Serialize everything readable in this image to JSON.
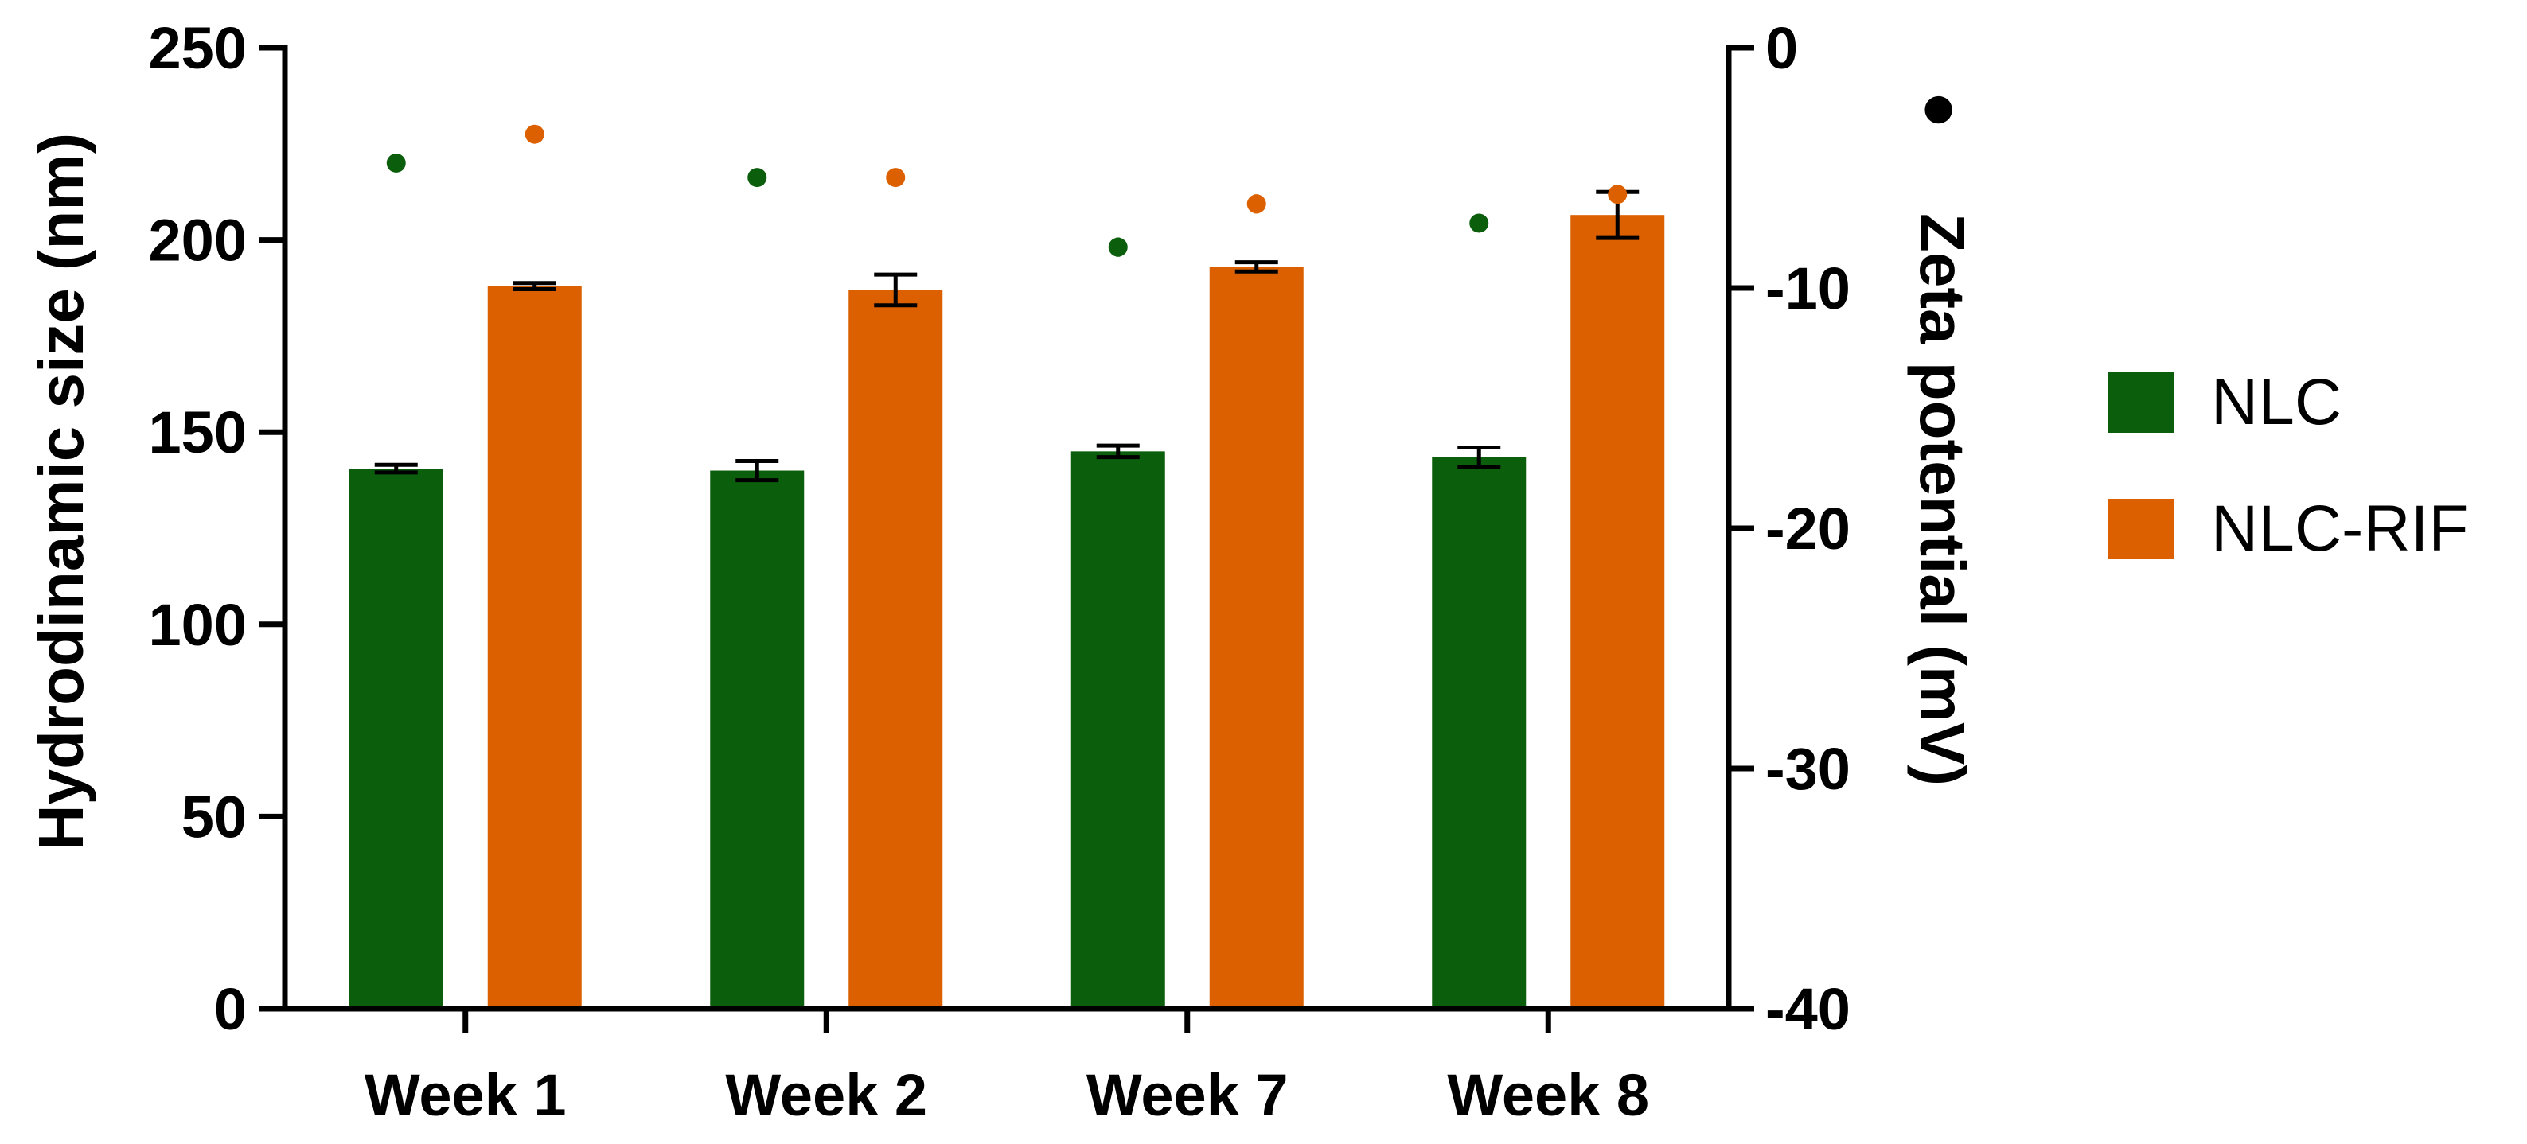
{
  "chart_data": {
    "type": "bar",
    "categories": [
      "Week 1",
      "Week 2",
      "Week 7",
      "Week 8"
    ],
    "series": [
      {
        "name": "NLC",
        "color": "#0b5e0b",
        "size_values": [
          140.5,
          140.0,
          145.0,
          143.5
        ],
        "size_errors": [
          1.0,
          2.5,
          1.5,
          2.5
        ],
        "zeta_values": [
          -4.8,
          -5.4,
          -8.3,
          -7.3
        ],
        "zeta_errors": [
          0.2,
          0.2,
          0.4,
          0.2
        ]
      },
      {
        "name": "NLC-RIF",
        "color": "#dc6000",
        "size_values": [
          188.0,
          187.0,
          193.0,
          206.5
        ],
        "size_errors": [
          0.8,
          4.0,
          1.2,
          6.0
        ],
        "zeta_values": [
          -3.6,
          -5.4,
          -6.5,
          -6.1
        ],
        "zeta_errors": [
          0.25,
          0.2,
          0.4,
          0.2
        ]
      }
    ],
    "y_left": {
      "label": "Hydrodinamic size (nm)",
      "ylim": [
        0,
        250
      ],
      "ticks": [
        "0",
        "50",
        "100",
        "150",
        "200",
        "250"
      ]
    },
    "y_right": {
      "label": "Zeta potential (mV)",
      "marker": "●",
      "ylim": [
        -40,
        0
      ],
      "ticks": [
        "-40",
        "-30",
        "-20",
        "-10",
        "0"
      ]
    },
    "legend": {
      "position": "right",
      "items": [
        "NLC",
        "NLC-RIF"
      ]
    },
    "grid": false
  }
}
